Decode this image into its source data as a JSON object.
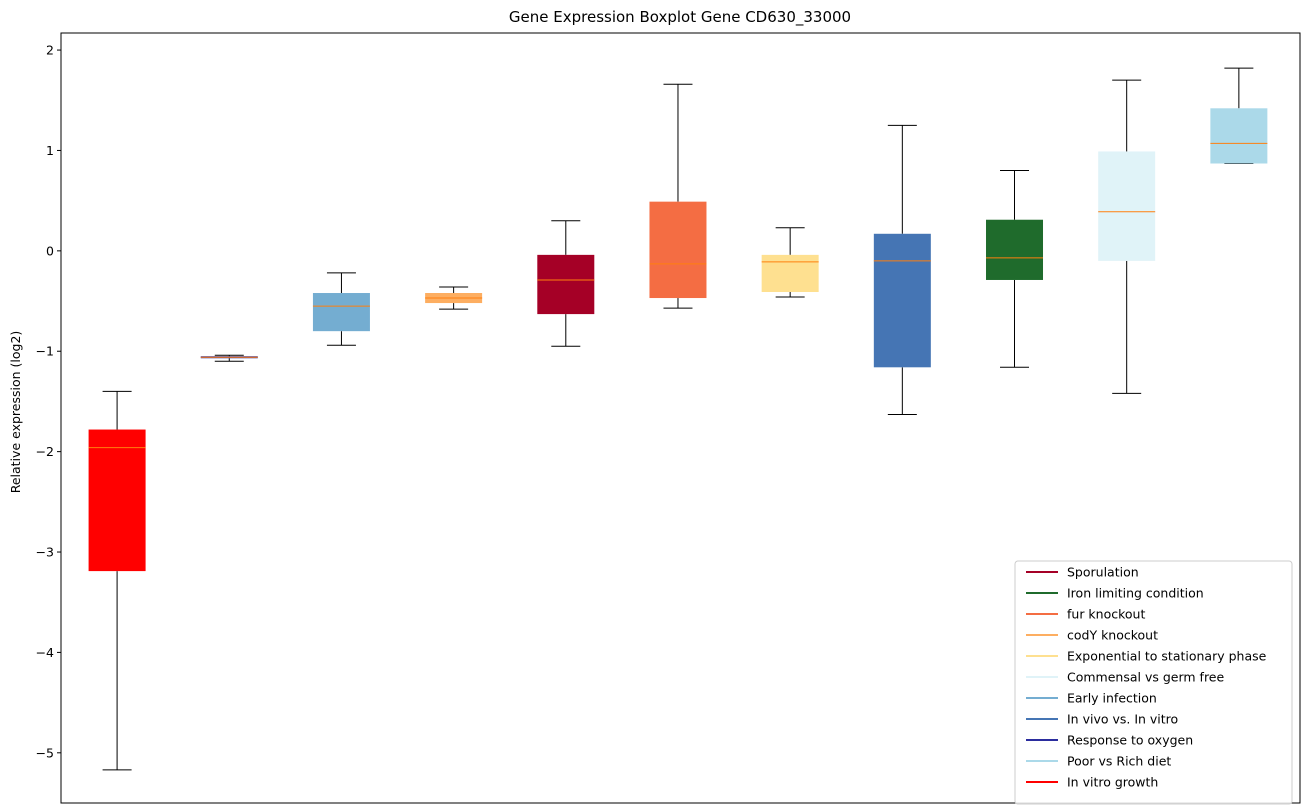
{
  "chart_data": {
    "type": "boxplot",
    "title": "Gene Expression Boxplot Gene CD630_33000",
    "xlabel": "",
    "ylabel": "Relative expression (log2)",
    "ylim": [
      -5.5,
      2.17
    ],
    "yticks": [
      2,
      1,
      0,
      -1,
      -2,
      -3,
      -4,
      -5
    ],
    "ytick_labels": [
      "2",
      "1",
      "0",
      "−1",
      "−2",
      "−3",
      "−4",
      "−5"
    ],
    "grid": false,
    "legend_position": "lower-right",
    "median_color": "#ff7f0e",
    "whisker_color": "#000000",
    "boxes": [
      {
        "name": "In vitro growth",
        "color": "#ff0000",
        "whisker_low": -5.17,
        "q1": -3.19,
        "median": -1.96,
        "q3": -1.78,
        "whisker_high": -1.4
      },
      {
        "name": "Response to oxygen",
        "color": "#2b2d9e",
        "whisker_low": -1.1,
        "q1": -1.07,
        "median": -1.06,
        "q3": -1.05,
        "whisker_high": -1.04
      },
      {
        "name": "Early infection",
        "color": "#74add1",
        "whisker_low": -0.94,
        "q1": -0.8,
        "median": -0.55,
        "q3": -0.42,
        "whisker_high": -0.22
      },
      {
        "name": "codY knockout",
        "color": "#fdae61",
        "whisker_low": -0.58,
        "q1": -0.52,
        "median": -0.47,
        "q3": -0.42,
        "whisker_high": -0.36
      },
      {
        "name": "Sporulation",
        "color": "#a50026",
        "whisker_low": -0.95,
        "q1": -0.63,
        "median": -0.29,
        "q3": -0.04,
        "whisker_high": 0.3
      },
      {
        "name": "fur knockout",
        "color": "#f46d43",
        "whisker_low": -0.57,
        "q1": -0.47,
        "median": -0.13,
        "q3": 0.49,
        "whisker_high": 1.66
      },
      {
        "name": "Exponential to stationary phase",
        "color": "#fee090",
        "whisker_low": -0.46,
        "q1": -0.41,
        "median": -0.11,
        "q3": -0.04,
        "whisker_high": 0.23
      },
      {
        "name": "In vivo vs. In vitro",
        "color": "#4575b4",
        "whisker_low": -1.63,
        "q1": -1.16,
        "median": -0.1,
        "q3": 0.17,
        "whisker_high": 1.25
      },
      {
        "name": "Iron limiting condition",
        "color": "#1f6b2c",
        "whisker_low": -1.16,
        "q1": -0.29,
        "median": -0.07,
        "q3": 0.31,
        "whisker_high": 0.8
      },
      {
        "name": "Commensal vs germ free",
        "color": "#e0f3f8",
        "whisker_low": -1.42,
        "q1": -0.1,
        "median": 0.39,
        "q3": 0.99,
        "whisker_high": 1.7
      },
      {
        "name": "Poor vs Rich diet",
        "color": "#abd9e9",
        "whisker_low": 0.87,
        "q1": 0.87,
        "median": 1.07,
        "q3": 1.42,
        "whisker_high": 1.82
      }
    ],
    "legend": [
      {
        "label": "Sporulation",
        "color": "#a50026"
      },
      {
        "label": "Iron limiting condition",
        "color": "#1f6b2c"
      },
      {
        "label": "fur knockout",
        "color": "#f46d43"
      },
      {
        "label": "codY knockout",
        "color": "#fdae61"
      },
      {
        "label": "Exponential to stationary phase",
        "color": "#fee090"
      },
      {
        "label": "Commensal vs germ free",
        "color": "#e0f3f8"
      },
      {
        "label": "Early infection",
        "color": "#74add1"
      },
      {
        "label": "In vivo vs. In vitro",
        "color": "#4575b4"
      },
      {
        "label": "Response to oxygen",
        "color": "#2b2d9e"
      },
      {
        "label": "Poor vs Rich diet",
        "color": "#abd9e9"
      },
      {
        "label": "In vitro growth",
        "color": "#ff0000"
      }
    ]
  }
}
